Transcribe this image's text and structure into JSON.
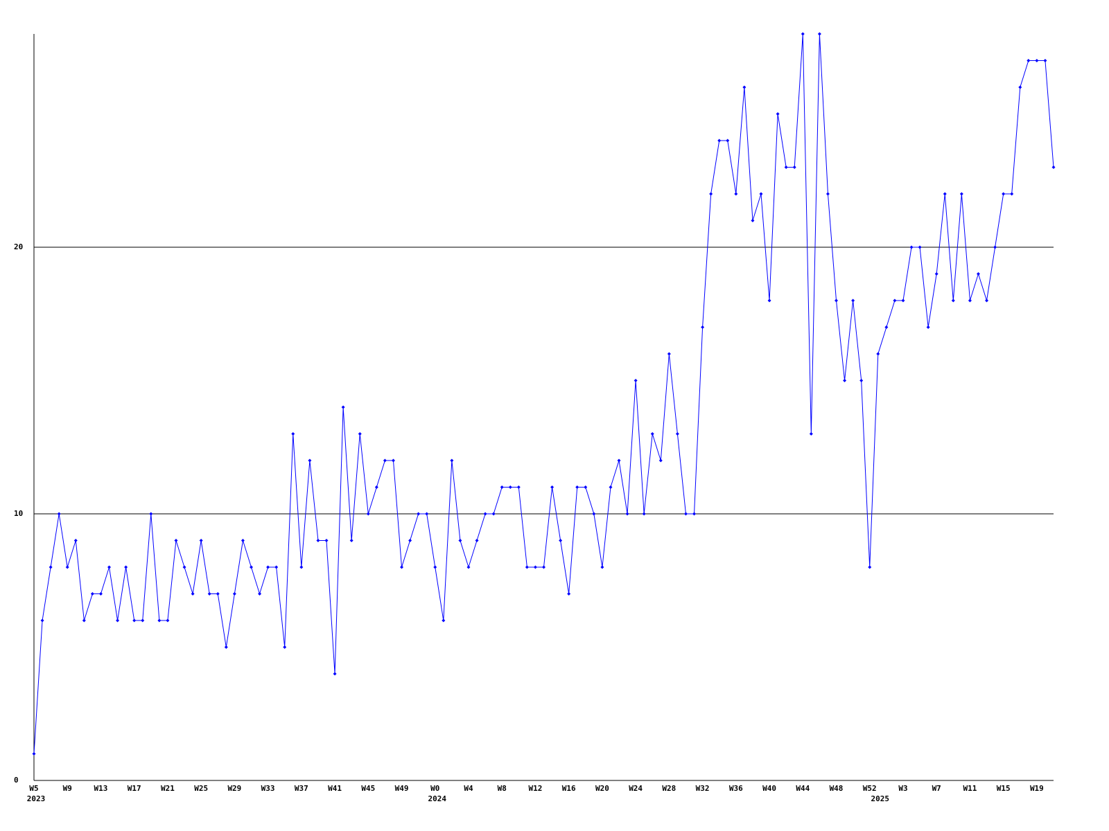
{
  "chart_data": {
    "type": "line",
    "categories": [
      "W5",
      null,
      null,
      null,
      "W9",
      null,
      null,
      null,
      "W13",
      null,
      null,
      null,
      "W17",
      null,
      null,
      null,
      "W21",
      null,
      null,
      null,
      "W25",
      null,
      null,
      null,
      "W29",
      null,
      null,
      null,
      "W33",
      null,
      null,
      null,
      "W37",
      null,
      null,
      null,
      "W41",
      null,
      null,
      null,
      "W45",
      null,
      null,
      null,
      "W49",
      null,
      null,
      null,
      "W0",
      null,
      null,
      null,
      "W4",
      null,
      null,
      null,
      "W8",
      null,
      null,
      null,
      "W12",
      null,
      null,
      null,
      "W16",
      null,
      null,
      null,
      "W20",
      null,
      null,
      null,
      "W24",
      null,
      null,
      null,
      "W28",
      null,
      null,
      null,
      "W32",
      null,
      null,
      null,
      "W36",
      null,
      null,
      null,
      "W40",
      null,
      null,
      null,
      "W44",
      null,
      null,
      null,
      "W48",
      null,
      null,
      null,
      "W52",
      null,
      null,
      null,
      "W3",
      null,
      null,
      null,
      "W7",
      null,
      null,
      null,
      "W11",
      null,
      null,
      null,
      "W15",
      null,
      null,
      null,
      "W19",
      null,
      null
    ],
    "category_years": [
      "2023",
      null,
      null,
      null,
      null,
      null,
      null,
      null,
      null,
      null,
      null,
      null,
      null,
      null,
      null,
      null,
      null,
      null,
      null,
      null,
      null,
      null,
      null,
      null,
      null,
      null,
      null,
      null,
      null,
      null,
      null,
      null,
      null,
      null,
      null,
      null,
      null,
      null,
      null,
      null,
      null,
      null,
      null,
      null,
      null,
      null,
      null,
      null,
      "2024",
      null,
      null,
      null,
      null,
      null,
      null,
      null,
      null,
      null,
      null,
      null,
      null,
      null,
      null,
      null,
      null,
      null,
      null,
      null,
      null,
      null,
      null,
      null,
      null,
      null,
      null,
      null,
      null,
      null,
      null,
      null,
      null,
      null,
      null,
      null,
      null,
      null,
      null,
      null,
      null,
      null,
      null,
      null,
      null,
      null,
      null,
      null,
      null,
      null,
      null,
      null,
      null,
      "2025",
      null,
      null,
      null,
      null,
      null,
      null,
      null,
      null,
      null,
      null,
      null,
      null,
      null,
      null,
      null,
      null,
      null,
      null,
      null,
      null,
      null
    ],
    "values": [
      1,
      6,
      8,
      10,
      8,
      9,
      6,
      7,
      7,
      8,
      6,
      8,
      6,
      6,
      10,
      6,
      6,
      9,
      8,
      7,
      9,
      7,
      7,
      5,
      7,
      9,
      8,
      7,
      8,
      8,
      5,
      13,
      8,
      12,
      9,
      9,
      4,
      14,
      9,
      13,
      10,
      11,
      12,
      12,
      8,
      9,
      10,
      10,
      8,
      6,
      12,
      9,
      8,
      9,
      10,
      10,
      11,
      11,
      11,
      8,
      8,
      8,
      11,
      9,
      7,
      11,
      11,
      10,
      8,
      11,
      12,
      10,
      15,
      10,
      13,
      12,
      16,
      13,
      10,
      10,
      17,
      22,
      24,
      24,
      22,
      26,
      21,
      22,
      18,
      25,
      23,
      23,
      28,
      13,
      28,
      22,
      18,
      15,
      18,
      15,
      8,
      16,
      17,
      18,
      18,
      20,
      20,
      17,
      19,
      22,
      18,
      22,
      18,
      19,
      18,
      20,
      22,
      22,
      26,
      27,
      27,
      27,
      23
    ],
    "color": "#0000ff",
    "ylim": [
      0,
      28
    ],
    "yticks": [
      0,
      10,
      20
    ],
    "grid": true
  }
}
